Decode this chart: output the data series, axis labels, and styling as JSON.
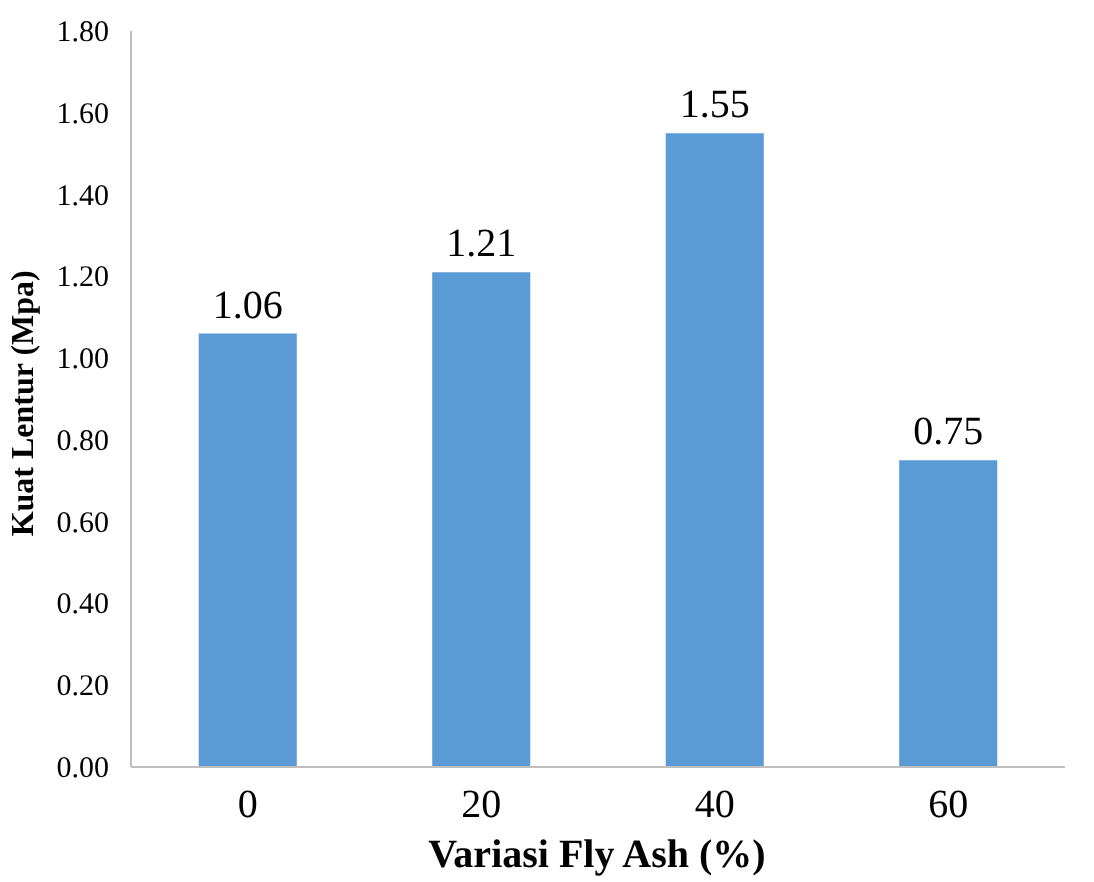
{
  "chart_data": {
    "type": "bar",
    "xlabel": "Variasi Fly Ash (%)",
    "ylabel": "Kuat  Lentur (Mpa)",
    "categories": [
      "0",
      "20",
      "40",
      "60"
    ],
    "values": [
      1.06,
      1.21,
      1.55,
      0.75
    ],
    "color": "#5b9bd5",
    "ylim": [
      0,
      1.8
    ],
    "yticks": [
      {
        "value": 0,
        "label": "0.00"
      },
      {
        "value": 0.2,
        "label": "0.20"
      },
      {
        "value": 0.4,
        "label": "0.40"
      },
      {
        "value": 0.6,
        "label": "0.60"
      },
      {
        "value": 0.8,
        "label": "0.80"
      },
      {
        "value": 1.0,
        "label": "1.00"
      },
      {
        "value": 1.2,
        "label": "1.20"
      },
      {
        "value": 1.4,
        "label": "1.40"
      },
      {
        "value": 1.6,
        "label": "1.60"
      },
      {
        "value": 1.8,
        "label": "1.80"
      }
    ],
    "data_labels": true,
    "grid": false
  }
}
